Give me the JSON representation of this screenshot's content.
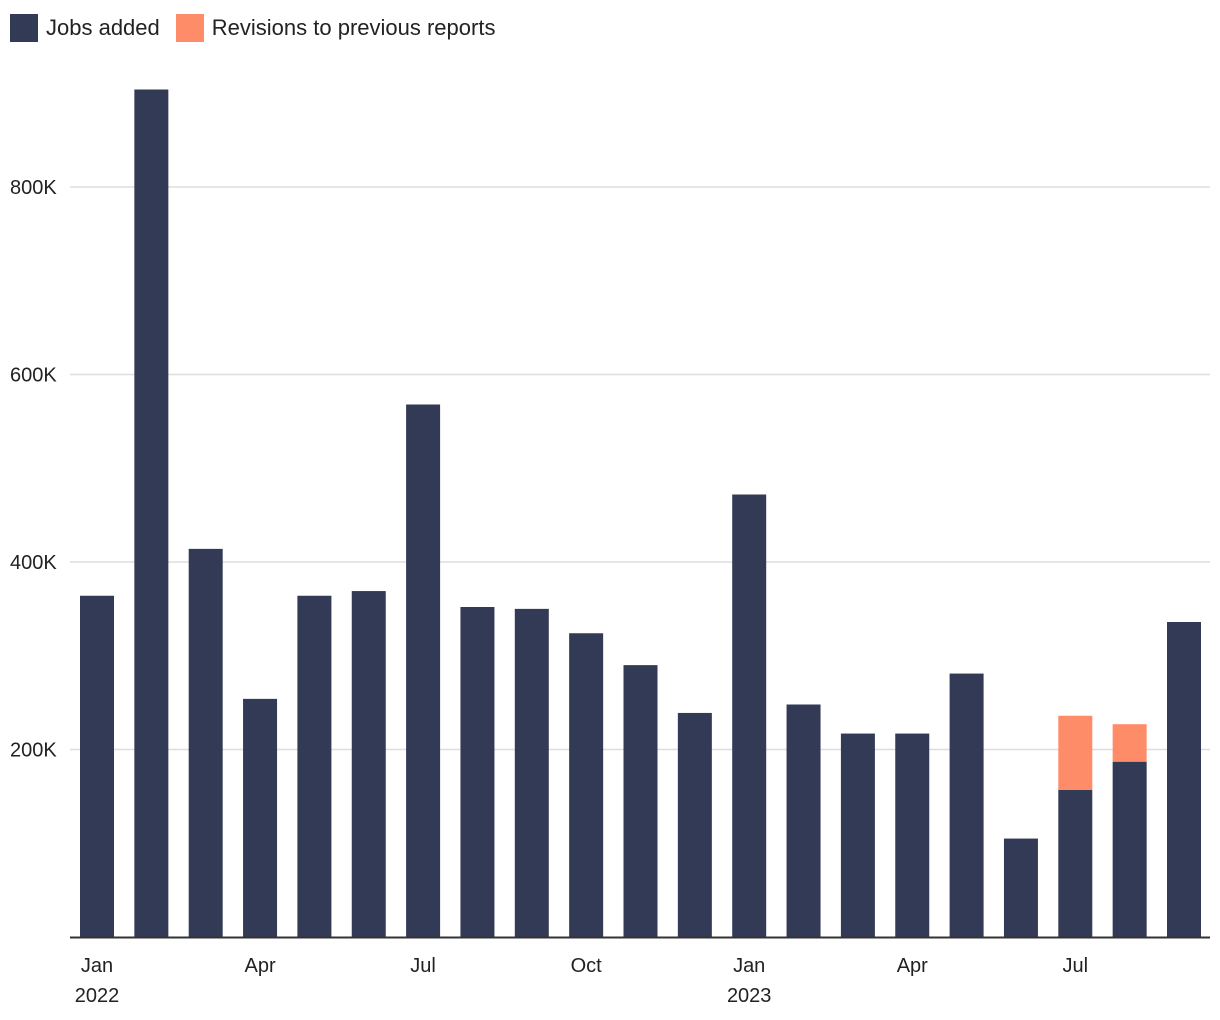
{
  "chart_data": {
    "type": "bar",
    "stacked": true,
    "title": "",
    "xlabel": "",
    "ylabel": "",
    "ylim": [
      0,
      900000
    ],
    "yticks": [
      200000,
      400000,
      600000,
      800000
    ],
    "ytick_labels": [
      "200K",
      "400K",
      "600K",
      "800K"
    ],
    "grid": true,
    "legend": [
      {
        "name": "Jobs added",
        "color": "#333a56"
      },
      {
        "name": "Revisions to previous reports",
        "color": "#ff8c69"
      }
    ],
    "categories": [
      "Jan 2022",
      "Feb 2022",
      "Mar 2022",
      "Apr 2022",
      "May 2022",
      "Jun 2022",
      "Jul 2022",
      "Aug 2022",
      "Sep 2022",
      "Oct 2022",
      "Nov 2022",
      "Dec 2022",
      "Jan 2023",
      "Feb 2023",
      "Mar 2023",
      "Apr 2023",
      "May 2023",
      "Jun 2023",
      "Jul 2023",
      "Aug 2023",
      "Sep 2023"
    ],
    "series": [
      {
        "name": "Jobs added",
        "color": "#333a56",
        "values": [
          364000,
          904000,
          414000,
          254000,
          364000,
          369000,
          568000,
          352000,
          350000,
          324000,
          290000,
          239000,
          472000,
          248000,
          217000,
          217000,
          281000,
          105000,
          157000,
          187000,
          336000
        ]
      },
      {
        "name": "Revisions to previous reports",
        "color": "#ff8c69",
        "values": [
          0,
          0,
          0,
          0,
          0,
          0,
          0,
          0,
          0,
          0,
          0,
          0,
          0,
          0,
          0,
          0,
          0,
          0,
          79000,
          40000,
          0
        ]
      }
    ],
    "x_tick_labels": [
      {
        "index": 0,
        "month": "Jan",
        "year": "2022"
      },
      {
        "index": 3,
        "month": "Apr",
        "year": ""
      },
      {
        "index": 6,
        "month": "Jul",
        "year": ""
      },
      {
        "index": 9,
        "month": "Oct",
        "year": ""
      },
      {
        "index": 12,
        "month": "Jan",
        "year": "2023"
      },
      {
        "index": 15,
        "month": "Apr",
        "year": ""
      },
      {
        "index": 18,
        "month": "Jul",
        "year": ""
      }
    ]
  }
}
